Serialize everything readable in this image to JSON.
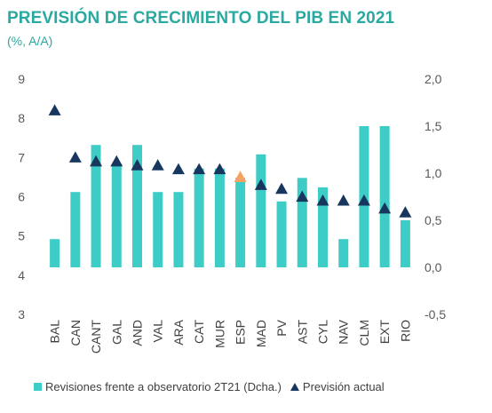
{
  "header": {
    "title": "PREVISIÓN DE CRECIMIENTO DEL PIB EN 2021",
    "subtitle": "(%, A/A)"
  },
  "legend": {
    "bars_label": "Revisiones frente a observatorio 2T21 (Dcha.)",
    "markers_label": "Previsión actual"
  },
  "chart_data": {
    "type": "bar",
    "title": "PREVISIÓN DE CRECIMIENTO DEL PIB EN 2021",
    "subtitle": "(%, A/A)",
    "categories": [
      "BAL",
      "CAN",
      "CANT",
      "GAL",
      "AND",
      "VAL",
      "ARA",
      "CAT",
      "MUR",
      "ESP",
      "MAD",
      "PV",
      "AST",
      "CYL",
      "NAV",
      "CLM",
      "EXT",
      "RIO"
    ],
    "left_axis": {
      "ylim": [
        3,
        9
      ],
      "ticks": [
        "3",
        "4",
        "5",
        "6",
        "7",
        "8",
        "9"
      ]
    },
    "right_axis": {
      "ylim": [
        -0.5,
        2.0
      ],
      "ticks": [
        "-0,5",
        "0,0",
        "0,5",
        "1,0",
        "1,5",
        "2,0"
      ]
    },
    "series": [
      {
        "name": "Revisiones frente a observatorio 2T21 (Dcha.)",
        "type": "bar",
        "axis": "right",
        "color": "#3dcdc6",
        "values": [
          0.3,
          0.8,
          1.3,
          1.1,
          1.3,
          0.8,
          0.8,
          1.05,
          1.05,
          0.95,
          1.2,
          0.7,
          0.95,
          0.85,
          0.3,
          1.5,
          1.5,
          0.5
        ]
      },
      {
        "name": "Previsión actual",
        "type": "scatter",
        "axis": "left",
        "color": "#17375e",
        "highlight_color": "#f4a261",
        "highlight_category": "ESP",
        "values": [
          8.2,
          7.0,
          6.9,
          6.9,
          6.8,
          6.8,
          6.7,
          6.7,
          6.7,
          6.5,
          6.3,
          6.2,
          6.0,
          5.9,
          5.9,
          5.9,
          5.7,
          5.6
        ]
      }
    ],
    "grid": false,
    "legend_position": "bottom"
  }
}
